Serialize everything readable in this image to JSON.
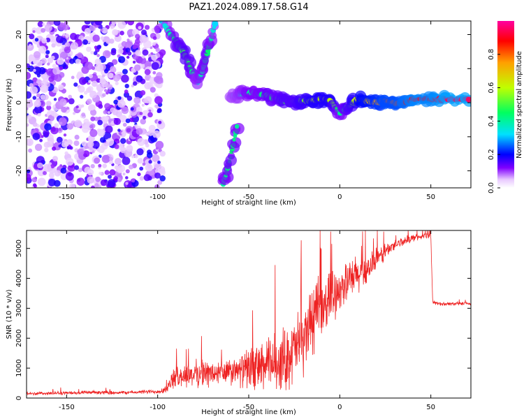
{
  "title": "PAZ1.2024.089.17.58.G14",
  "chart_data": [
    {
      "type": "heatmap",
      "xlabel": "Height of straight line (km)",
      "ylabel": "Frequency (Hz)",
      "xlim": [
        -172,
        72
      ],
      "ylim": [
        -25,
        24
      ],
      "xticks": [
        -150,
        -100,
        -50,
        0,
        50
      ],
      "yticks": [
        -20,
        -10,
        0,
        10,
        20
      ],
      "colorbar": {
        "label": "Normalized spectral amplitude",
        "range": [
          0,
          1
        ],
        "ticks": [
          0.0,
          0.2,
          0.4,
          0.6,
          0.8
        ],
        "colormap": [
          "#ffffff",
          "#e8c8ff",
          "#8000ff",
          "#0000ff",
          "#00e0ff",
          "#00ff60",
          "#c0ff00",
          "#ffa000",
          "#ff0000",
          "#ff00a0"
        ]
      },
      "ridge": {
        "x": [
          -60,
          -55,
          -50,
          -45,
          -40,
          -35,
          -30,
          -25,
          -20,
          -15,
          -10,
          -5,
          0,
          5,
          10,
          15,
          20,
          25,
          30,
          35,
          40,
          50,
          60,
          72
        ],
        "y": [
          2,
          2.5,
          3,
          2.5,
          2,
          1,
          0.5,
          0,
          0.5,
          0.5,
          1,
          0.5,
          -3,
          -1,
          1,
          0.5,
          0,
          0.5,
          0,
          0,
          1,
          1,
          1,
          1
        ],
        "amplitude": [
          0.3,
          0.35,
          0.4,
          0.4,
          0.45,
          0.45,
          0.5,
          0.5,
          0.55,
          0.6,
          0.6,
          0.6,
          0.4,
          0.5,
          0.65,
          0.7,
          0.75,
          0.8,
          0.8,
          0.85,
          0.9,
          0.9,
          0.95,
          0.95
        ]
      },
      "descending_branch": {
        "x": [
          -98,
          -90,
          -85,
          -82,
          -78,
          -75,
          -72,
          -68,
          -64,
          -60,
          -56
        ],
        "y": [
          24,
          18,
          14,
          10,
          6,
          10,
          16,
          24,
          -24,
          -16,
          -6
        ],
        "amplitude": [
          0.3,
          0.45,
          0.5,
          0.45,
          0.35,
          0.4,
          0.45,
          0.3,
          0.4,
          0.45,
          0.4
        ]
      },
      "noise_region_x": [
        -172,
        -97
      ]
    },
    {
      "type": "line",
      "xlabel": "Height of straight line (km)",
      "ylabel": "SNR (10 * v/v)",
      "xlim": [
        -172,
        72
      ],
      "ylim": [
        0,
        5600
      ],
      "xticks": [
        -150,
        -100,
        -50,
        0,
        50
      ],
      "yticks": [
        0,
        1000,
        2000,
        3000,
        4000,
        5000
      ],
      "color": "#ee2222",
      "series": [
        {
          "x": [
            -172,
            -160,
            -150,
            -140,
            -130,
            -120,
            -110,
            -100,
            -95,
            -92,
            -90,
            -85,
            -80,
            -75,
            -70,
            -65,
            -60,
            -55,
            -50,
            -45,
            -40,
            -35,
            -30,
            -25,
            -20,
            -15,
            -10,
            -5,
            0,
            5,
            10,
            15,
            20,
            25,
            30,
            35,
            40,
            45,
            50,
            51,
            55,
            60,
            65,
            72
          ],
          "y": [
            150,
            160,
            170,
            180,
            190,
            180,
            200,
            220,
            300,
            600,
            700,
            750,
            800,
            850,
            800,
            850,
            850,
            900,
            1000,
            1000,
            1100,
            1200,
            1300,
            1600,
            2000,
            2600,
            3000,
            3400,
            3700,
            3900,
            4100,
            4300,
            4600,
            4900,
            5100,
            5250,
            5350,
            5400,
            5450,
            3200,
            3150,
            3150,
            3150,
            3150
          ],
          "spread": [
            60,
            60,
            60,
            60,
            60,
            60,
            60,
            80,
            150,
            300,
            350,
            400,
            450,
            450,
            450,
            450,
            450,
            500,
            700,
            800,
            900,
            1000,
            1100,
            1100,
            1200,
            1200,
            1000,
            900,
            700,
            700,
            700,
            500,
            400,
            300,
            200,
            150,
            120,
            100,
            100,
            60,
            60,
            60,
            60,
            60
          ]
        }
      ]
    }
  ]
}
